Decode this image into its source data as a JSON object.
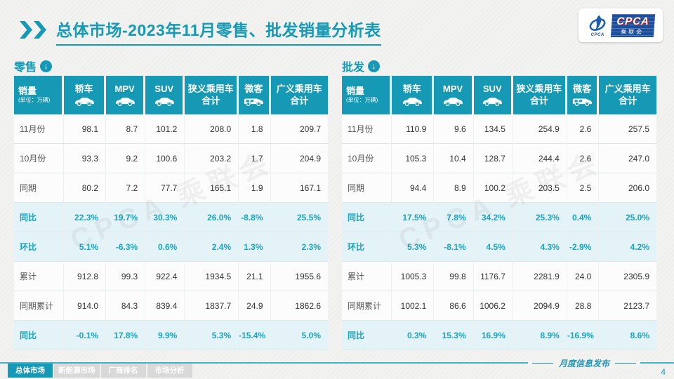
{
  "header": {
    "title_bold": "总体市场",
    "title_rest": "-2023年11月零售、批发销量分析表"
  },
  "logo": {
    "abbr": "CPCA",
    "cn": "乘联会",
    "emblem_text": "CPCA"
  },
  "watermark": "CPCA 乘联会",
  "colors": {
    "accent": "#1699B4",
    "row_tint": "#E4F3F8",
    "logo_blue": "#1B4E9B",
    "logo_red": "#C8161E"
  },
  "icons": {
    "section_arrow": "download-arrow-icon",
    "vehicle_columns": [
      "car-icon",
      "van-icon"
    ]
  },
  "chart_data": [
    {
      "type": "table",
      "name": "retail",
      "section_label": "零售",
      "columns": [
        {
          "label": "销量",
          "sub": "(单位：万辆)"
        },
        {
          "label": "轿车",
          "icon": "car-icon"
        },
        {
          "label": "MPV",
          "icon": "car-icon"
        },
        {
          "label": "SUV",
          "icon": "car-icon"
        },
        {
          "label": "狭义乘用车",
          "label2": "合计"
        },
        {
          "label": "微客",
          "icon": "van-icon"
        },
        {
          "label": "广义乘用车",
          "label2": "合计"
        }
      ],
      "rows": [
        {
          "label": "11月份",
          "type": "value",
          "values": [
            "98.1",
            "8.7",
            "101.2",
            "208.0",
            "1.8",
            "209.7"
          ]
        },
        {
          "label": "10月份",
          "type": "value",
          "values": [
            "93.3",
            "9.2",
            "100.6",
            "203.2",
            "1.7",
            "204.9"
          ]
        },
        {
          "label": "同期",
          "type": "value",
          "values": [
            "80.2",
            "7.2",
            "77.7",
            "165.1",
            "1.9",
            "167.1"
          ]
        },
        {
          "label": "同比",
          "type": "percent",
          "values": [
            "22.3%",
            "19.7%",
            "30.3%",
            "26.0%",
            "-8.8%",
            "25.5%"
          ]
        },
        {
          "label": "环比",
          "type": "percent",
          "values": [
            "5.1%",
            "-6.3%",
            "0.6%",
            "2.4%",
            "1.3%",
            "2.3%"
          ]
        },
        {
          "label": "累计",
          "type": "value",
          "values": [
            "912.8",
            "99.3",
            "922.4",
            "1934.5",
            "21.1",
            "1955.6"
          ]
        },
        {
          "label": "同期累计",
          "type": "value",
          "values": [
            "914.0",
            "84.3",
            "839.4",
            "1837.7",
            "24.9",
            "1862.6"
          ]
        },
        {
          "label": "同比",
          "type": "percent",
          "values": [
            "-0.1%",
            "17.8%",
            "9.9%",
            "5.3%",
            "-15.4%",
            "5.0%"
          ]
        }
      ]
    },
    {
      "type": "table",
      "name": "wholesale",
      "section_label": "批发",
      "columns": [
        {
          "label": "销量",
          "sub": "(单位：万辆)"
        },
        {
          "label": "轿车",
          "icon": "car-icon"
        },
        {
          "label": "MPV",
          "icon": "car-icon"
        },
        {
          "label": "SUV",
          "icon": "car-icon"
        },
        {
          "label": "狭义乘用车",
          "label2": "合计"
        },
        {
          "label": "微客",
          "icon": "van-icon"
        },
        {
          "label": "广义乘用车",
          "label2": "合计"
        }
      ],
      "rows": [
        {
          "label": "11月份",
          "type": "value",
          "values": [
            "110.9",
            "9.6",
            "134.5",
            "254.9",
            "2.6",
            "257.5"
          ]
        },
        {
          "label": "10月份",
          "type": "value",
          "values": [
            "105.3",
            "10.4",
            "128.7",
            "244.4",
            "2.6",
            "247.0"
          ]
        },
        {
          "label": "同期",
          "type": "value",
          "values": [
            "94.4",
            "8.9",
            "100.2",
            "203.5",
            "2.5",
            "206.0"
          ]
        },
        {
          "label": "同比",
          "type": "percent",
          "values": [
            "17.5%",
            "7.8%",
            "34.2%",
            "25.3%",
            "0.4%",
            "25.0%"
          ]
        },
        {
          "label": "环比",
          "type": "percent",
          "values": [
            "5.3%",
            "-8.1%",
            "4.5%",
            "4.3%",
            "-2.9%",
            "4.2%"
          ]
        },
        {
          "label": "累计",
          "type": "value",
          "values": [
            "1005.3",
            "99.8",
            "1176.7",
            "2281.9",
            "24.0",
            "2305.9"
          ]
        },
        {
          "label": "同期累计",
          "type": "value",
          "values": [
            "1002.1",
            "86.6",
            "1006.2",
            "2094.9",
            "28.8",
            "2123.7"
          ]
        },
        {
          "label": "同比",
          "type": "percent",
          "values": [
            "0.3%",
            "15.3%",
            "16.9%",
            "8.9%",
            "-16.9%",
            "8.6%"
          ]
        }
      ]
    }
  ],
  "footer": {
    "tabs": [
      {
        "label": "总体市场",
        "active": true
      },
      {
        "label": "新能源市场",
        "active": false
      },
      {
        "label": "厂商排名",
        "active": false
      },
      {
        "label": "市场分析",
        "active": false
      }
    ],
    "publish_label": "月度信息发布",
    "page_number": "4"
  }
}
